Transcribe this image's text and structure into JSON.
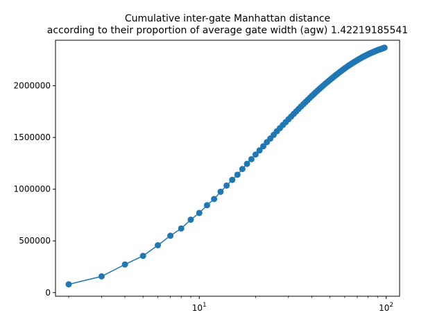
{
  "chart_data": {
    "type": "line",
    "title": "Cumulative inter-gate Manhattan distance",
    "subtitle": "according to their proportion of average gate width (agw) 1.42219185541",
    "xlabel": "",
    "ylabel": "",
    "xscale": "log",
    "xlim": [
      1.7,
      118
    ],
    "ylim": [
      -35000,
      2440000
    ],
    "grid": false,
    "legend": "none",
    "color": "#1f77b4",
    "y_ticks": [
      0,
      500000,
      1000000,
      1500000,
      2000000
    ],
    "y_tick_labels": [
      "0",
      "500000",
      "1000000",
      "1500000",
      "2000000"
    ],
    "x_ticks": [
      10,
      100
    ],
    "x_tick_labels": [
      "10^1",
      "10^2"
    ],
    "x_minor_ticks": [
      2,
      3,
      4,
      5,
      6,
      7,
      8,
      9,
      20,
      30,
      40,
      50,
      60,
      70,
      80,
      90
    ],
    "series": [
      {
        "x": [
          2,
          3,
          4,
          5,
          6,
          7,
          8,
          9,
          10,
          11,
          12,
          13,
          14,
          15,
          16,
          17,
          18,
          19,
          20,
          21,
          22,
          23,
          24,
          25,
          26,
          27,
          28,
          29,
          30,
          31,
          32,
          33,
          34,
          35,
          36,
          37,
          38,
          39,
          40,
          41,
          42,
          43,
          44,
          45,
          46,
          47,
          48,
          49,
          50,
          51,
          52,
          53,
          54,
          55,
          56,
          57,
          58,
          59,
          60,
          61,
          62,
          63,
          64,
          65,
          66,
          67,
          68,
          69,
          70,
          71,
          72,
          73,
          74,
          75,
          76,
          77,
          78,
          79,
          80,
          81,
          82,
          83,
          84,
          85,
          86,
          87,
          88,
          89,
          90,
          91,
          92,
          93,
          94,
          95,
          96,
          97,
          98
        ],
        "y": [
          80000,
          157000,
          272000,
          355000,
          458000,
          550000,
          620000,
          705000,
          770000,
          845000,
          905000,
          975000,
          1035000,
          1090000,
          1140000,
          1195000,
          1245000,
          1290000,
          1335000,
          1375000,
          1415000,
          1455000,
          1490000,
          1525000,
          1560000,
          1590000,
          1620000,
          1648000,
          1676000,
          1702000,
          1728000,
          1752000,
          1776000,
          1799000,
          1821000,
          1842000,
          1862000,
          1882000,
          1901000,
          1919000,
          1937000,
          1954000,
          1970000,
          1986000,
          2001000,
          2016000,
          2030000,
          2043000,
          2056000,
          2069000,
          2081000,
          2093000,
          2105000,
          2116000,
          2127000,
          2138000,
          2148000,
          2158000,
          2168000,
          2177000,
          2186000,
          2195000,
          2203000,
          2211000,
          2219000,
          2226000,
          2233000,
          2240000,
          2247000,
          2254000,
          2260000,
          2266000,
          2272000,
          2278000,
          2284000,
          2289000,
          2294000,
          2299000,
          2304000,
          2309000,
          2313000,
          2317000,
          2321000,
          2325000,
          2329000,
          2333000,
          2337000,
          2341000,
          2344000,
          2347000,
          2350000,
          2353000,
          2356000,
          2359000,
          2362000,
          2365000,
          2368000
        ]
      }
    ]
  }
}
